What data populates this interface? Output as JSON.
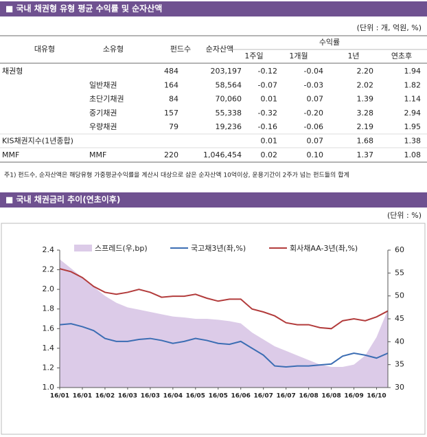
{
  "header1": "■ 국내 채권형 유형 평균 수익률 및 순자산액",
  "unit1": "(단위 : 개, 억원, %)",
  "table": {
    "columns": [
      "대유형",
      "소유형",
      "펀드수",
      "순자산액"
    ],
    "group": "수익률",
    "subcolumns": [
      "1주일",
      "1개월",
      "1년",
      "연초후"
    ],
    "rows": [
      [
        "채권형",
        null,
        "484",
        "203,197",
        "-0.12",
        "-0.04",
        "2.20",
        "1.94"
      ],
      [
        null,
        "일반채권",
        "164",
        "58,564",
        "-0.07",
        "-0.03",
        "2.02",
        "1.82"
      ],
      [
        null,
        "초단기채권",
        "84",
        "70,060",
        "0.01",
        "0.07",
        "1.39",
        "1.14"
      ],
      [
        null,
        "중기채권",
        "157",
        "55,338",
        "-0.32",
        "-0.20",
        "3.28",
        "2.94"
      ],
      [
        null,
        "우량채권",
        "79",
        "19,236",
        "-0.16",
        "-0.06",
        "2.19",
        "1.95"
      ],
      [
        "KIS채권지수(1년종합)",
        null,
        null,
        null,
        "0.01",
        "0.07",
        "1.68",
        "1.38"
      ],
      [
        "MMF",
        "MMF",
        "220",
        "1,046,454",
        "0.02",
        "0.10",
        "1.37",
        "1.08"
      ]
    ]
  },
  "note": "주1) 펀드수, 순자산액은 해당유형 가중평균수익률을 계산시 대상으로 삼은 순자산액 10억이상, 운용기간이 2주가 넘는 펀드들의 합계",
  "header2": "■ 국내 채권금리 추이(연초이후)",
  "unit2": "(단위 : %)",
  "chart_data": {
    "type": "line",
    "categories": [
      "16/01",
      null,
      "16/01",
      null,
      "16/02",
      null,
      "16/03",
      null,
      "16/03",
      null,
      "16/04",
      null,
      "16/05",
      null,
      "16/05",
      null,
      "16/06",
      null,
      "16/07",
      null,
      "16/07",
      null,
      "16/08",
      null,
      "16/08",
      null,
      "16/09",
      null,
      "16/10",
      null
    ],
    "series": [
      {
        "name": "스프레드(우,bp)",
        "color": "#dccbe8",
        "axis": "y2",
        "kind": "area",
        "values": [
          58,
          56,
          54,
          52,
          50,
          48.5,
          47.5,
          47,
          46.5,
          46,
          45.5,
          45.3,
          45,
          45,
          44.8,
          44.5,
          44,
          42,
          40.5,
          39,
          38,
          37,
          36,
          35,
          34.5,
          34.5,
          35,
          37,
          41,
          47
        ]
      },
      {
        "name": "국고채3년(좌,%)",
        "color": "#3b6db3",
        "values": [
          1.64,
          1.65,
          1.62,
          1.58,
          1.5,
          1.47,
          1.47,
          1.49,
          1.5,
          1.48,
          1.45,
          1.47,
          1.5,
          1.48,
          1.45,
          1.44,
          1.47,
          1.4,
          1.33,
          1.22,
          1.21,
          1.22,
          1.22,
          1.23,
          1.24,
          1.32,
          1.35,
          1.33,
          1.3,
          1.35
        ]
      },
      {
        "name": "회사채AA-3년(좌,%)",
        "color": "#b23b3b",
        "values": [
          2.21,
          2.18,
          2.12,
          2.03,
          1.97,
          1.95,
          1.97,
          2.0,
          1.97,
          1.92,
          1.93,
          1.93,
          1.95,
          1.91,
          1.88,
          1.9,
          1.9,
          1.8,
          1.77,
          1.73,
          1.66,
          1.64,
          1.64,
          1.61,
          1.6,
          1.68,
          1.7,
          1.68,
          1.72,
          1.78
        ]
      }
    ],
    "ylim": [
      1,
      2.4
    ],
    "yticks": [
      {
        "value": 1,
        "label": "1.0"
      },
      1.2,
      1.4,
      1.6,
      1.8,
      {
        "value": 2,
        "label": "2.0"
      },
      2.2,
      2.4
    ],
    "y2lim": [
      30,
      60
    ],
    "y2ticks": [
      30,
      35,
      40,
      45,
      50,
      55,
      60
    ],
    "grid": false
  }
}
